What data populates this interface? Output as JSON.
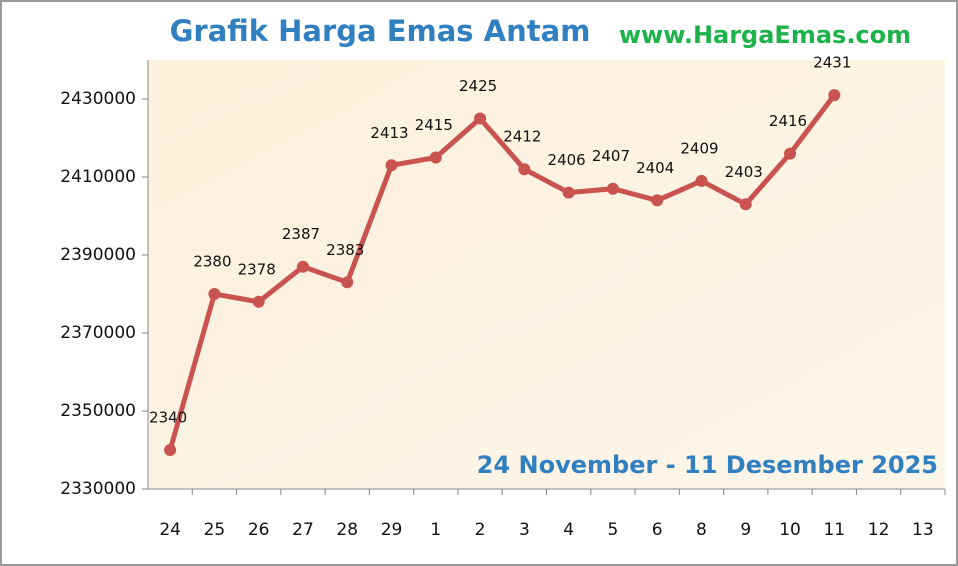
{
  "chart_data": {
    "type": "line",
    "title": "Grafik Harga Emas Antam",
    "source": "www.HargaEmas.com",
    "subtitle": "24 November - 11 Desember 2025",
    "categories": [
      "24",
      "25",
      "26",
      "27",
      "28",
      "29",
      "1",
      "2",
      "3",
      "4",
      "5",
      "6",
      "8",
      "9",
      "10",
      "11",
      "12",
      "13"
    ],
    "series": [
      {
        "color": "#c9534f",
        "values": [
          2340000,
          2380000,
          2378000,
          2387000,
          2383000,
          2413000,
          2415000,
          2425000,
          2412000,
          2406000,
          2407000,
          2404000,
          2409000,
          2403000,
          2416000,
          2431000,
          null,
          null
        ],
        "value_labels": [
          "2340",
          "2380",
          "2378",
          "2387",
          "2383",
          "2413",
          "2415",
          "2425",
          "2412",
          "2406",
          "2407",
          "2404",
          "2409",
          "2403",
          "2416",
          "2431",
          null,
          null
        ]
      }
    ],
    "ylim": [
      2330000,
      2440000
    ],
    "yticks": [
      2330000,
      2350000,
      2370000,
      2390000,
      2410000,
      2430000
    ]
  }
}
